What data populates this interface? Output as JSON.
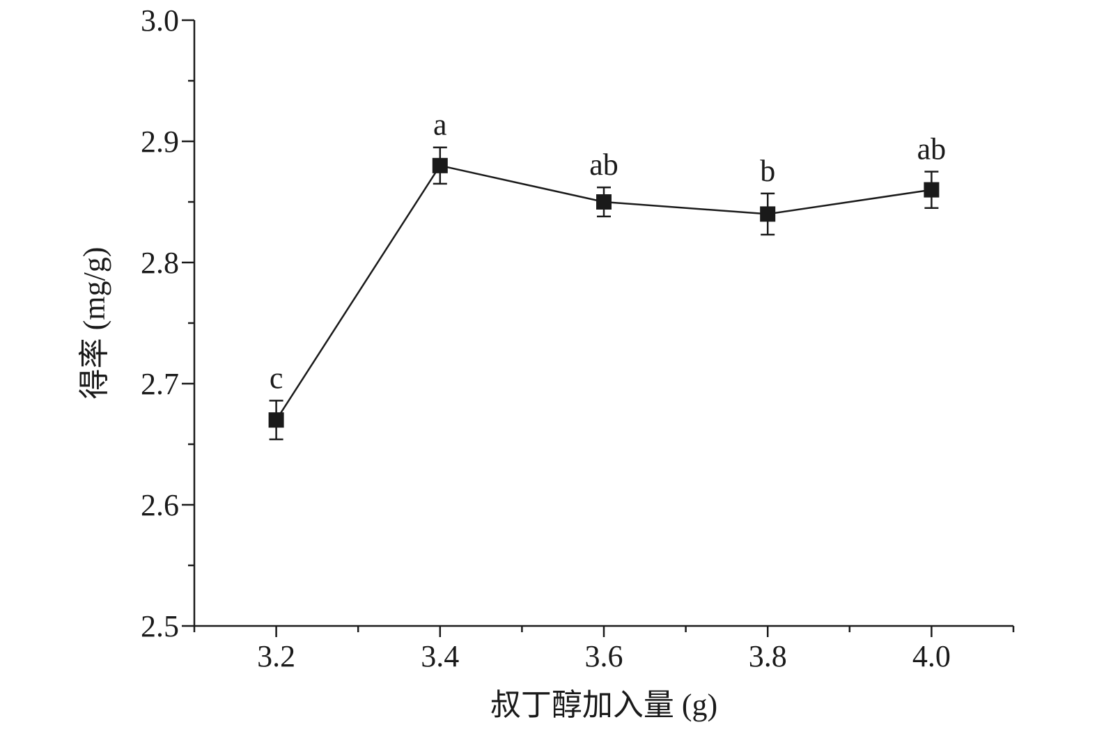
{
  "chart_data": {
    "type": "line",
    "title": "",
    "xlabel": "叔丁醇加入量 (g)",
    "ylabel": "得率 (mg/g)",
    "xlim": [
      3.1,
      4.1
    ],
    "ylim": [
      2.5,
      3.0
    ],
    "x_ticks": [
      3.2,
      3.4,
      3.6,
      3.8,
      4.0
    ],
    "x_tick_labels": [
      "3.2",
      "3.4",
      "3.6",
      "3.8",
      "4.0"
    ],
    "y_ticks": [
      2.5,
      2.6,
      2.7,
      2.8,
      2.9,
      3.0
    ],
    "y_tick_labels": [
      "2.5",
      "2.6",
      "2.7",
      "2.8",
      "2.9",
      "3.0"
    ],
    "grid": false,
    "legend": "none",
    "color": "#1a1a1a",
    "marker": "square",
    "series": [
      {
        "x": [
          3.2,
          3.4,
          3.6,
          3.8,
          4.0
        ],
        "values": [
          2.67,
          2.88,
          2.85,
          2.84,
          2.86
        ],
        "error": [
          0.016,
          0.015,
          0.012,
          0.017,
          0.015
        ],
        "labels": [
          "c",
          "a",
          "ab",
          "b",
          "ab"
        ]
      }
    ]
  }
}
